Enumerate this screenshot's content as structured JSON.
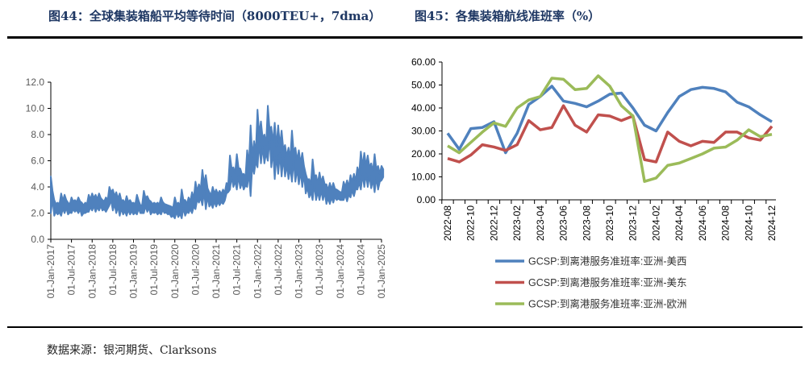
{
  "header": {
    "left_title": "图44：全球集装箱船平均等待时间（8000TEU+，7dma）",
    "right_title": "图45：各集装箱航线准班率（%）"
  },
  "footer": {
    "source": "数据来源：银河期货、Clarksons"
  },
  "chart_data": [
    {
      "type": "area",
      "title": "图44：全球集装箱船平均等待时间（8000TEU+，7dma）",
      "note": "monthly low/high range of the daily 7dma series",
      "ylim": [
        0,
        12
      ],
      "yticks": [
        "0.0",
        "2.0",
        "4.0",
        "6.0",
        "8.0",
        "10.0",
        "12.0"
      ],
      "xticks": [
        "01-Jan-2017",
        "01-Jul-2017",
        "01-Jan-2018",
        "01-Jul-2018",
        "01-Jan-2019",
        "01-Jul-2019",
        "01-Jan-2020",
        "01-Jul-2020",
        "01-Jan-2021",
        "01-Jul-2021",
        "01-Jan-2022",
        "01-Jul-2022",
        "01-Jan-2023",
        "01-Jul-2023",
        "01-Jan-2024",
        "01-Jul-2024",
        "01-Jan-2025"
      ],
      "start": "2017-01",
      "color": "#4f81bd",
      "monthly_range": [
        [
          2.0,
          4.8
        ],
        [
          1.8,
          3.0
        ],
        [
          1.9,
          2.8
        ],
        [
          1.8,
          3.5
        ],
        [
          2.0,
          3.4
        ],
        [
          1.9,
          2.8
        ],
        [
          2.0,
          3.2
        ],
        [
          2.1,
          3.0
        ],
        [
          2.0,
          3.2
        ],
        [
          1.8,
          2.8
        ],
        [
          2.0,
          2.8
        ],
        [
          2.1,
          3.4
        ],
        [
          2.2,
          3.5
        ],
        [
          2.1,
          3.4
        ],
        [
          2.2,
          3.5
        ],
        [
          2.2,
          3.0
        ],
        [
          2.1,
          3.2
        ],
        [
          2.6,
          4.0
        ],
        [
          2.2,
          3.8
        ],
        [
          2.0,
          3.6
        ],
        [
          1.8,
          3.5
        ],
        [
          1.9,
          3.0
        ],
        [
          1.8,
          3.3
        ],
        [
          1.9,
          3.0
        ],
        [
          1.9,
          2.8
        ],
        [
          1.9,
          3.4
        ],
        [
          2.0,
          2.6
        ],
        [
          2.0,
          3.7
        ],
        [
          2.1,
          3.3
        ],
        [
          1.9,
          2.9
        ],
        [
          2.0,
          2.8
        ],
        [
          1.9,
          2.8
        ],
        [
          1.9,
          3.2
        ],
        [
          2.0,
          2.7
        ],
        [
          1.9,
          2.6
        ],
        [
          1.7,
          2.5
        ],
        [
          1.6,
          3.2
        ],
        [
          1.7,
          2.8
        ],
        [
          1.6,
          3.8
        ],
        [
          1.8,
          3.0
        ],
        [
          2.0,
          3.2
        ],
        [
          2.0,
          3.6
        ],
        [
          2.3,
          4.4
        ],
        [
          2.8,
          4.2
        ],
        [
          2.6,
          5.3
        ],
        [
          2.3,
          4.9
        ],
        [
          2.5,
          3.6
        ],
        [
          2.4,
          4.0
        ],
        [
          2.5,
          3.8
        ],
        [
          2.6,
          3.7
        ],
        [
          2.7,
          3.8
        ],
        [
          3.5,
          4.3
        ],
        [
          3.8,
          6.4
        ],
        [
          4.0,
          5.5
        ],
        [
          3.8,
          6.5
        ],
        [
          3.9,
          5.4
        ],
        [
          3.8,
          5.0
        ],
        [
          4.0,
          6.8
        ],
        [
          3.3,
          8.7
        ],
        [
          5.0,
          7.5
        ],
        [
          5.5,
          9.9
        ],
        [
          5.8,
          9.0
        ],
        [
          5.8,
          8.0
        ],
        [
          6.0,
          10.2
        ],
        [
          5.5,
          8.6
        ],
        [
          4.6,
          8.9
        ],
        [
          5.0,
          8.7
        ],
        [
          4.8,
          8.3
        ],
        [
          4.8,
          7.2
        ],
        [
          4.6,
          7.0
        ],
        [
          4.4,
          8.3
        ],
        [
          4.4,
          7.0
        ],
        [
          4.2,
          6.8
        ],
        [
          4.0,
          6.6
        ],
        [
          3.5,
          5.0
        ],
        [
          3.2,
          4.6
        ],
        [
          3.0,
          6.1
        ],
        [
          3.0,
          4.9
        ],
        [
          3.0,
          5.1
        ],
        [
          3.0,
          4.8
        ],
        [
          2.7,
          4.2
        ],
        [
          2.7,
          4.3
        ],
        [
          2.8,
          4.3
        ],
        [
          3.0,
          3.8
        ],
        [
          3.0,
          3.6
        ],
        [
          3.0,
          4.4
        ],
        [
          2.9,
          4.5
        ],
        [
          3.2,
          4.9
        ],
        [
          3.3,
          5.0
        ],
        [
          3.8,
          5.5
        ],
        [
          3.8,
          6.7
        ],
        [
          4.0,
          6.6
        ],
        [
          4.0,
          6.4
        ],
        [
          3.9,
          5.8
        ],
        [
          3.6,
          6.5
        ],
        [
          3.8,
          5.6
        ],
        [
          4.5,
          5.6
        ]
      ]
    },
    {
      "type": "line",
      "title": "图45：各集装箱航线准班率（%）",
      "ylim": [
        0,
        60
      ],
      "yticks": [
        "0.00",
        "10.00",
        "20.00",
        "30.00",
        "40.00",
        "50.00",
        "60.00"
      ],
      "categories": [
        "2022-08",
        "2022-09",
        "2022-10",
        "2022-11",
        "2022-12",
        "2023-01",
        "2023-02",
        "2023-03",
        "2023-04",
        "2023-05",
        "2023-06",
        "2023-07",
        "2023-08",
        "2023-09",
        "2023-10",
        "2023-11",
        "2023-12",
        "2024-01",
        "2024-02",
        "2024-03",
        "2024-04",
        "2024-05",
        "2024-06",
        "2024-07",
        "2024-08",
        "2024-09",
        "2024-10",
        "2024-11",
        "2024-12"
      ],
      "xtick_labels": [
        "2022-08",
        "2022-10",
        "2022-12",
        "2023-02",
        "2023-04",
        "2023-06",
        "2023-08",
        "2023-10",
        "2023-12",
        "2024-02",
        "2024-04",
        "2024-06",
        "2024-08",
        "2024-10",
        "2024-12"
      ],
      "legend": "bottom",
      "series": [
        {
          "name": "GCSP:到离港服务准班率:亚洲-美西",
          "color": "#4f81bd",
          "values": [
            29,
            22,
            31,
            31.5,
            34,
            20.5,
            29,
            41.5,
            45,
            49.5,
            43,
            42,
            40.5,
            43,
            46,
            46.5,
            40,
            32.5,
            30,
            38,
            45,
            48,
            49,
            48.5,
            47,
            42.5,
            40.5,
            37,
            34
          ]
        },
        {
          "name": "GCSP:到离港服务准班率:亚洲-美东",
          "color": "#c0504d",
          "values": [
            18,
            16.5,
            19.5,
            24,
            23,
            21.5,
            24,
            34.5,
            30.5,
            31.5,
            41,
            32.5,
            29.5,
            37,
            36.5,
            34.5,
            36.5,
            17.5,
            16.5,
            29.5,
            25.5,
            23.5,
            25.5,
            25,
            29.5,
            29.5,
            27,
            26,
            32
          ]
        },
        {
          "name": "GCSP:到离港服务准班率:亚洲-欧洲",
          "color": "#9bbb59",
          "values": [
            23.5,
            20.5,
            25,
            29.5,
            33.5,
            32,
            40,
            43.5,
            45,
            53,
            52.5,
            48,
            48.5,
            54,
            49.5,
            41,
            36.5,
            8,
            9.5,
            15,
            16,
            18,
            20,
            22.5,
            23,
            26,
            30.5,
            27.5,
            28.5
          ]
        }
      ]
    }
  ]
}
